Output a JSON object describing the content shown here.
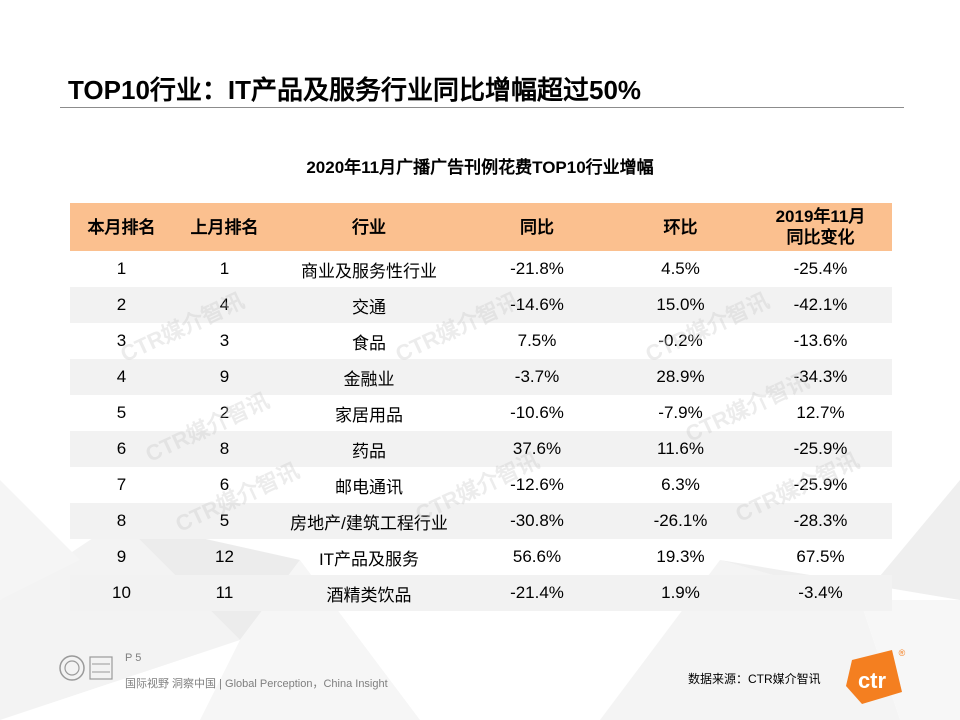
{
  "title": "TOP10行业：IT产品及服务行业同比增幅超过50%",
  "chart_data": {
    "type": "table",
    "title": "2020年11月广播广告刊例花费TOP10行业增幅",
    "columns": [
      "本月排名",
      "上月排名",
      "行业",
      "同比",
      "环比",
      "2019年11月同比变化"
    ],
    "rows": [
      [
        "1",
        "1",
        "商业及服务性行业",
        "-21.8%",
        "4.5%",
        "-25.4%"
      ],
      [
        "2",
        "4",
        "交通",
        "-14.6%",
        "15.0%",
        "-42.1%"
      ],
      [
        "3",
        "3",
        "食品",
        "7.5%",
        "-0.2%",
        "-13.6%"
      ],
      [
        "4",
        "9",
        "金融业",
        "-3.7%",
        "28.9%",
        "-34.3%"
      ],
      [
        "5",
        "2",
        "家居用品",
        "-10.6%",
        "-7.9%",
        "12.7%"
      ],
      [
        "6",
        "8",
        "药品",
        "37.6%",
        "11.6%",
        "-25.9%"
      ],
      [
        "7",
        "6",
        "邮电通讯",
        "-12.6%",
        "6.3%",
        "-25.9%"
      ],
      [
        "8",
        "5",
        "房地产/建筑工程行业",
        "-30.8%",
        "-26.1%",
        "-28.3%"
      ],
      [
        "9",
        "12",
        "IT产品及服务",
        "56.6%",
        "19.3%",
        "67.5%"
      ],
      [
        "10",
        "11",
        "酒精类饮品",
        "-21.4%",
        "1.9%",
        "-3.4%"
      ]
    ]
  },
  "header_col6_line1": "2019年11月",
  "header_col6_line2": "同比变化",
  "watermark": "CTR媒介智讯",
  "footer": {
    "page": "P 5",
    "slogan": "国际视野 洞察中国 | Global Perception，China Insight",
    "source": "数据来源：CTR媒介智讯"
  },
  "logo": {
    "text": "ctr",
    "mark": "®"
  },
  "colors": {
    "header_fill": "#fbc08f",
    "stripe": "#f2f2f2",
    "logo_orange": "#f47f20"
  }
}
